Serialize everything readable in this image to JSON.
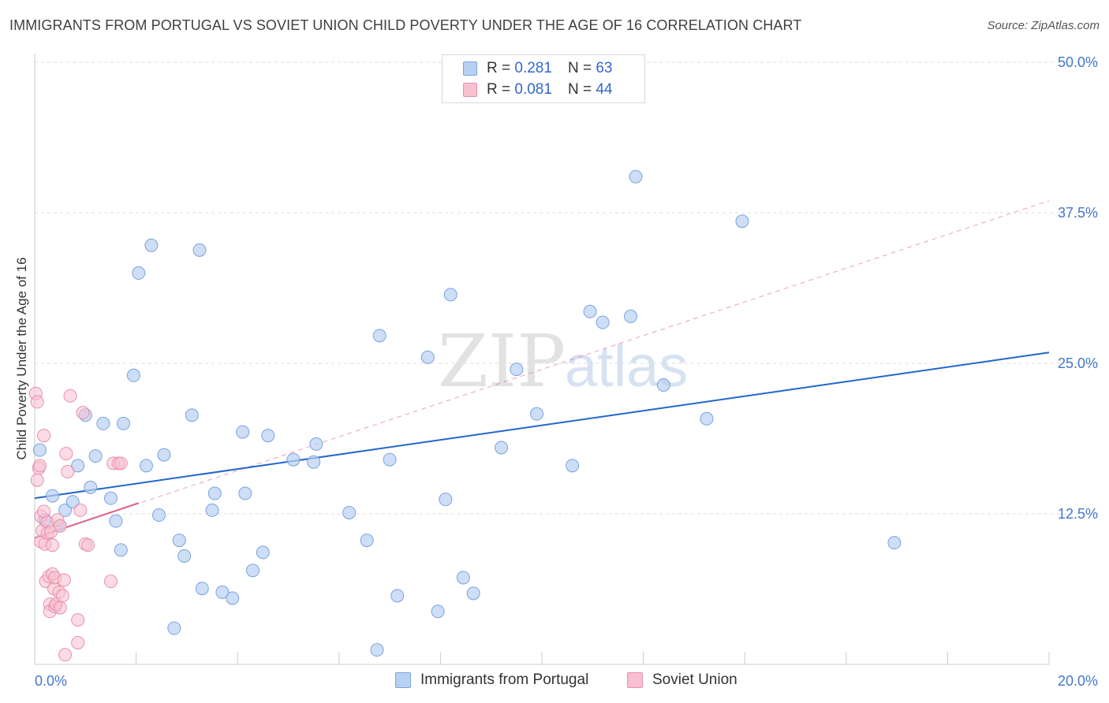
{
  "title": "IMMIGRANTS FROM PORTUGAL VS SOVIET UNION CHILD POVERTY UNDER THE AGE OF 16 CORRELATION CHART",
  "source": "Source: ZipAtlas.com",
  "watermark": {
    "zip": "ZIP",
    "atlas": "atlas"
  },
  "colors": {
    "portugal_fill": "#b8d0f2",
    "portugal_stroke": "#7aa3dd",
    "portugal_line": "#2266cc",
    "soviet_fill": "#f7c0d0",
    "soviet_stroke": "#e890ac",
    "soviet_line": "#e0608c",
    "grid": "#dddddd",
    "tick_text": "#4477cc"
  },
  "legend_top": {
    "rows": [
      {
        "r_label": "R =",
        "r_value": "0.281",
        "n_label": "N =",
        "n_value": "63"
      },
      {
        "r_label": "R =",
        "r_value": "0.081",
        "n_label": "N =",
        "n_value": "44"
      }
    ]
  },
  "legend_bottom": {
    "items": [
      {
        "label": "Immigrants from Portugal"
      },
      {
        "label": "Soviet Union"
      }
    ]
  },
  "chart_data": {
    "type": "scatter",
    "title": "IMMIGRANTS FROM PORTUGAL VS SOVIET UNION CHILD POVERTY UNDER THE AGE OF 16 CORRELATION CHART",
    "xlabel": "",
    "ylabel": "Child Poverty Under the Age of 16",
    "xlim": [
      0,
      20
    ],
    "ylim": [
      0,
      50
    ],
    "x_tick_labels": [
      {
        "value": 0,
        "label": "0.0%"
      },
      {
        "value": 20,
        "label": "20.0%"
      }
    ],
    "y_tick_labels": [
      {
        "value": 12.5,
        "label": "12.5%"
      },
      {
        "value": 25,
        "label": "25.0%"
      },
      {
        "value": 37.5,
        "label": "37.5%"
      },
      {
        "value": 50,
        "label": "50.0%"
      }
    ],
    "x_minor_ticks": [
      2,
      4,
      6,
      8,
      10,
      12,
      14,
      16,
      18,
      20
    ],
    "grid": true,
    "legend_position": "top-center",
    "series": [
      {
        "name": "Immigrants from Portugal",
        "R": 0.281,
        "N": 63,
        "trend": {
          "x": [
            0,
            20
          ],
          "y": [
            13.8,
            25.9
          ],
          "style": "solid"
        },
        "points": [
          [
            0.1,
            17.8
          ],
          [
            0.2,
            12.0
          ],
          [
            0.35,
            14.0
          ],
          [
            0.5,
            11.5
          ],
          [
            0.6,
            12.8
          ],
          [
            0.75,
            13.5
          ],
          [
            0.85,
            16.5
          ],
          [
            1.0,
            20.7
          ],
          [
            1.1,
            14.7
          ],
          [
            1.2,
            17.3
          ],
          [
            1.35,
            20.0
          ],
          [
            1.5,
            13.8
          ],
          [
            1.6,
            11.9
          ],
          [
            1.7,
            9.5
          ],
          [
            1.75,
            20.0
          ],
          [
            1.95,
            24.0
          ],
          [
            2.05,
            32.5
          ],
          [
            2.2,
            16.5
          ],
          [
            2.3,
            34.8
          ],
          [
            2.45,
            12.4
          ],
          [
            2.55,
            17.4
          ],
          [
            2.75,
            3.0
          ],
          [
            2.85,
            10.3
          ],
          [
            2.95,
            9.0
          ],
          [
            3.1,
            20.7
          ],
          [
            3.25,
            34.4
          ],
          [
            3.3,
            6.3
          ],
          [
            3.5,
            12.8
          ],
          [
            3.55,
            14.2
          ],
          [
            3.7,
            6.0
          ],
          [
            3.9,
            5.5
          ],
          [
            4.1,
            19.3
          ],
          [
            4.15,
            14.2
          ],
          [
            4.3,
            7.8
          ],
          [
            4.5,
            9.3
          ],
          [
            4.6,
            19.0
          ],
          [
            5.1,
            17.0
          ],
          [
            5.5,
            16.8
          ],
          [
            5.55,
            18.3
          ],
          [
            6.2,
            12.6
          ],
          [
            6.55,
            10.3
          ],
          [
            6.75,
            1.2
          ],
          [
            6.8,
            27.3
          ],
          [
            7.0,
            17.0
          ],
          [
            7.15,
            5.7
          ],
          [
            7.75,
            25.5
          ],
          [
            7.95,
            4.4
          ],
          [
            8.1,
            13.7
          ],
          [
            8.2,
            30.7
          ],
          [
            8.45,
            7.2
          ],
          [
            8.65,
            5.9
          ],
          [
            9.2,
            18.0
          ],
          [
            9.5,
            24.5
          ],
          [
            9.9,
            20.8
          ],
          [
            10.6,
            16.5
          ],
          [
            10.95,
            29.3
          ],
          [
            11.2,
            28.4
          ],
          [
            11.75,
            28.9
          ],
          [
            11.85,
            40.5
          ],
          [
            12.4,
            23.2
          ],
          [
            13.25,
            20.4
          ],
          [
            13.95,
            36.8
          ],
          [
            16.95,
            10.1
          ]
        ]
      },
      {
        "name": "Soviet Union",
        "R": 0.081,
        "N": 44,
        "trend": {
          "x": [
            0,
            2.05
          ],
          "y": [
            10.5,
            13.4
          ],
          "style": "solid"
        },
        "trend_extended": {
          "x": [
            0,
            20
          ],
          "y": [
            10.5,
            38.5
          ],
          "style": "dashed"
        },
        "points": [
          [
            0.02,
            22.5
          ],
          [
            0.05,
            21.8
          ],
          [
            0.05,
            15.3
          ],
          [
            0.08,
            16.3
          ],
          [
            0.1,
            16.5
          ],
          [
            0.12,
            10.2
          ],
          [
            0.12,
            12.3
          ],
          [
            0.15,
            11.1
          ],
          [
            0.18,
            12.7
          ],
          [
            0.18,
            19.0
          ],
          [
            0.2,
            10.0
          ],
          [
            0.22,
            6.9
          ],
          [
            0.25,
            11.8
          ],
          [
            0.25,
            10.9
          ],
          [
            0.28,
            7.3
          ],
          [
            0.3,
            5.0
          ],
          [
            0.3,
            4.4
          ],
          [
            0.32,
            11.0
          ],
          [
            0.35,
            9.9
          ],
          [
            0.35,
            7.5
          ],
          [
            0.38,
            6.3
          ],
          [
            0.4,
            4.8
          ],
          [
            0.4,
            7.2
          ],
          [
            0.42,
            5.0
          ],
          [
            0.45,
            12.0
          ],
          [
            0.48,
            6.0
          ],
          [
            0.5,
            4.7
          ],
          [
            0.5,
            11.5
          ],
          [
            0.55,
            5.7
          ],
          [
            0.58,
            7.0
          ],
          [
            0.6,
            0.8
          ],
          [
            0.62,
            17.5
          ],
          [
            0.65,
            16.0
          ],
          [
            0.7,
            22.3
          ],
          [
            0.85,
            1.8
          ],
          [
            0.85,
            3.7
          ],
          [
            0.9,
            12.8
          ],
          [
            0.95,
            20.9
          ],
          [
            1.0,
            10.0
          ],
          [
            1.05,
            9.9
          ],
          [
            1.5,
            6.9
          ],
          [
            1.55,
            16.7
          ],
          [
            1.65,
            16.7
          ],
          [
            1.7,
            16.7
          ]
        ]
      }
    ]
  }
}
